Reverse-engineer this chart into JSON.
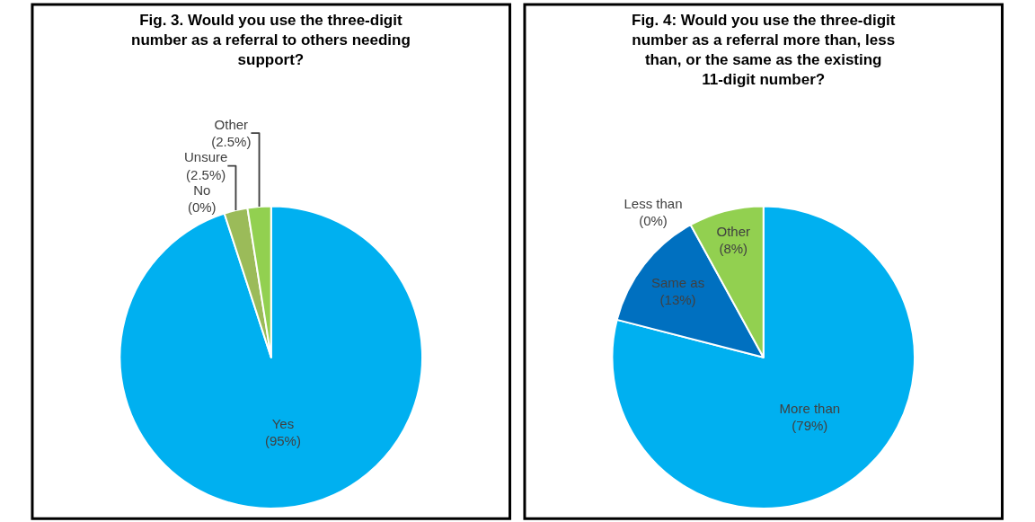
{
  "chart_data": [
    {
      "type": "pie",
      "title": "Fig. 3. Would you use the three-digit number as a referral to others needing support?",
      "categories": [
        "Yes",
        "No",
        "Unsure",
        "Other"
      ],
      "values": [
        95,
        0,
        2.5,
        2.5
      ],
      "value_labels": [
        "(95%)",
        "(0%)",
        "(2.5%)",
        "(2.5%)"
      ],
      "colors": [
        "#00b0f0",
        "#0070c0",
        "#9bbb59",
        "#92d050"
      ]
    },
    {
      "type": "pie",
      "title": "Fig. 4: Would you use the three-digit number as a referral more than, less than, or the same as the existing 11-digit number?",
      "categories": [
        "More than",
        "Same as",
        "Less than",
        "Other"
      ],
      "values": [
        79,
        13,
        0,
        8
      ],
      "value_labels": [
        "(79%)",
        "(13%)",
        "(0%)",
        "(8%)"
      ],
      "colors": [
        "#00b0f0",
        "#0070c0",
        "#7f7f7f",
        "#92d050"
      ]
    }
  ]
}
